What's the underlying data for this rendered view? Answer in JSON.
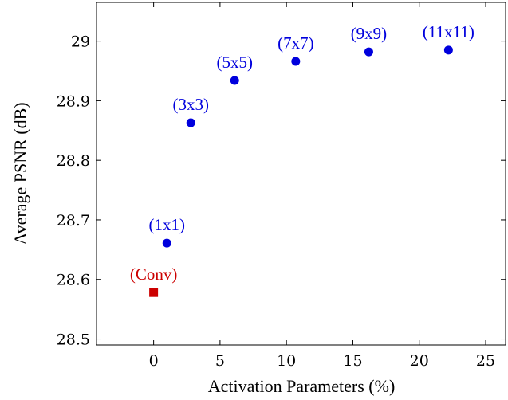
{
  "chart_data": {
    "type": "scatter",
    "xlabel": "Activation Parameters (%)",
    "ylabel": "Average PSNR (dB)",
    "xlim": [
      -4.3,
      26.5
    ],
    "ylim": [
      28.49,
      29.065
    ],
    "xticks": [
      0,
      5,
      10,
      15,
      20,
      25
    ],
    "yticks": [
      28.5,
      28.6,
      28.7,
      28.8,
      28.9,
      29
    ],
    "ytick_labels": [
      "28.5",
      "28.6",
      "28.7",
      "28.8",
      "28.9",
      "29"
    ],
    "grid": false,
    "series": [
      {
        "marker": "square",
        "color": "#cc0000",
        "points": [
          {
            "x": 0,
            "y": 28.578,
            "label": "(Conv)"
          }
        ]
      },
      {
        "marker": "circle",
        "color": "#0000dd",
        "points": [
          {
            "x": 1.0,
            "y": 28.661,
            "label": "(1x1)"
          },
          {
            "x": 2.8,
            "y": 28.863,
            "label": "(3x3)"
          },
          {
            "x": 6.1,
            "y": 28.934,
            "label": "(5x5)"
          },
          {
            "x": 10.7,
            "y": 28.966,
            "label": "(7x7)"
          },
          {
            "x": 16.2,
            "y": 28.982,
            "label": "(9x9)"
          },
          {
            "x": 22.2,
            "y": 28.985,
            "label": "(11x11)"
          }
        ]
      }
    ]
  }
}
